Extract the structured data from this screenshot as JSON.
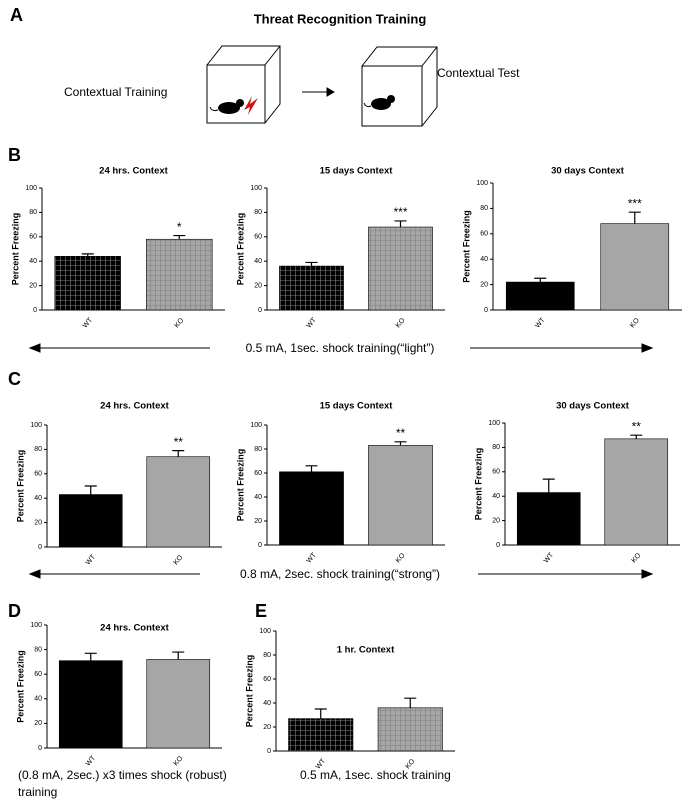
{
  "title": "Threat Recognition Training",
  "panel_labels": [
    "A",
    "B",
    "C",
    "D",
    "E"
  ],
  "diagram": {
    "training": "Contextual Training",
    "test": "Contextual Test"
  },
  "captions": [
    "0.5 mA, 1sec.  shock training(“light”)",
    "0.8 mA, 2sec.  shock training(“strong”)",
    "(0.8 mA, 2sec.) x3 times  shock (robust)",
    "training",
    "0.5 mA, 1sec.  shock training"
  ],
  "chart_data": [
    {
      "type": "bar",
      "title": "24 hrs. Context",
      "ylabel": "Percent Freezing",
      "categories": [
        "WT",
        "KO"
      ],
      "values": [
        44,
        58
      ],
      "errors": [
        2,
        3
      ],
      "annotation": "*",
      "colors": [
        "#000000",
        "#a6a6a6"
      ],
      "hatch": true,
      "ylim": [
        0,
        100
      ],
      "yticks": [
        0,
        20,
        40,
        60,
        80,
        100
      ]
    },
    {
      "type": "bar",
      "title": "15 days Context",
      "ylabel": "Percent Freezing",
      "categories": [
        "WT",
        "KO"
      ],
      "values": [
        36,
        68
      ],
      "errors": [
        3,
        5
      ],
      "annotation": "***",
      "colors": [
        "#000000",
        "#a6a6a6"
      ],
      "hatch": true,
      "ylim": [
        0,
        100
      ],
      "yticks": [
        0,
        20,
        40,
        60,
        80,
        100
      ]
    },
    {
      "type": "bar",
      "title": "30 days Context",
      "ylabel": "Percent Freezing",
      "categories": [
        "WT",
        "KO"
      ],
      "values": [
        22,
        68
      ],
      "errors": [
        3,
        9
      ],
      "annotation": "***",
      "colors": [
        "#000000",
        "#a6a6a6"
      ],
      "hatch": false,
      "ylim": [
        0,
        100
      ],
      "yticks": [
        0,
        20,
        40,
        60,
        80,
        100
      ]
    },
    {
      "type": "bar",
      "title": "24 hrs. Context",
      "ylabel": "Percent Freezing",
      "categories": [
        "WT",
        "KO"
      ],
      "values": [
        43,
        74
      ],
      "errors": [
        7,
        5
      ],
      "annotation": "**",
      "colors": [
        "#000000",
        "#a6a6a6"
      ],
      "hatch": false,
      "ylim": [
        0,
        100
      ],
      "yticks": [
        0,
        20,
        40,
        60,
        80,
        100
      ]
    },
    {
      "type": "bar",
      "title": "15 days Context",
      "ylabel": "Percent Freezing",
      "categories": [
        "WT",
        "KO"
      ],
      "values": [
        61,
        83
      ],
      "errors": [
        5,
        3
      ],
      "annotation": "**",
      "colors": [
        "#000000",
        "#a6a6a6"
      ],
      "hatch": false,
      "ylim": [
        0,
        100
      ],
      "yticks": [
        0,
        20,
        40,
        60,
        80,
        100
      ]
    },
    {
      "type": "bar",
      "title": "30 days Context",
      "ylabel": "Percent Freezing",
      "categories": [
        "WT",
        "KO"
      ],
      "values": [
        43,
        87
      ],
      "errors": [
        11,
        3
      ],
      "annotation": "**",
      "colors": [
        "#000000",
        "#a6a6a6"
      ],
      "hatch": false,
      "ylim": [
        0,
        100
      ],
      "yticks": [
        0,
        20,
        40,
        60,
        80,
        100
      ]
    },
    {
      "type": "bar",
      "title": "24 hrs. Context",
      "ylabel": "Percent Freezing",
      "categories": [
        "WT",
        "KO"
      ],
      "values": [
        71,
        72
      ],
      "errors": [
        6,
        6
      ],
      "colors": [
        "#000000",
        "#a6a6a6"
      ],
      "hatch": false,
      "ylim": [
        0,
        100
      ],
      "yticks": [
        0,
        20,
        40,
        60,
        80,
        100
      ]
    },
    {
      "type": "bar",
      "title": "1 hr. Context",
      "ylabel": "Percent Freezing",
      "categories": [
        "WT",
        "KO"
      ],
      "values": [
        27,
        36
      ],
      "errors": [
        8,
        8
      ],
      "colors": [
        "#000000",
        "#a6a6a6"
      ],
      "hatch": true,
      "ylim": [
        0,
        100
      ],
      "yticks": [
        0,
        20,
        40,
        60,
        80,
        100
      ]
    }
  ]
}
